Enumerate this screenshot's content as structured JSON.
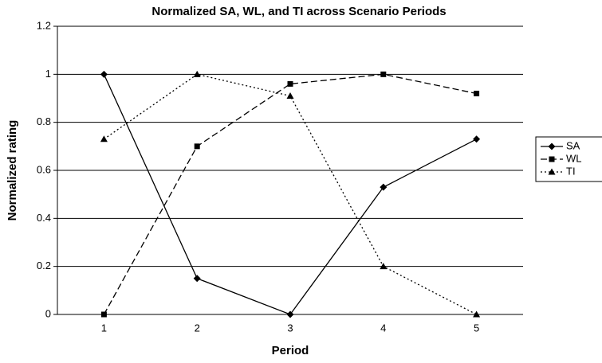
{
  "chart_data": {
    "type": "line",
    "title": "Normalized SA, WL, and TI across Scenario Periods",
    "x_label": "Period",
    "y_label": "Normalized rating",
    "categories": [
      "1",
      "2",
      "3",
      "4",
      "5"
    ],
    "series": [
      {
        "name": "SA",
        "color": "#000000",
        "line_style": "solid",
        "marker": "diamond",
        "values": [
          1,
          0.15,
          0,
          0.53,
          0.73
        ]
      },
      {
        "name": "WL",
        "color": "#000000",
        "line_style": "dashed",
        "marker": "square",
        "values": [
          0,
          0.7,
          0.96,
          1,
          0.92
        ]
      },
      {
        "name": "TI",
        "color": "#000000",
        "line_style": "dotted",
        "marker": "triangle",
        "values": [
          0.73,
          1,
          0.91,
          0.2,
          0
        ]
      }
    ],
    "ylim": [
      0,
      1.2
    ],
    "yticks": [
      0,
      0.2,
      0.4,
      0.6,
      0.8,
      1,
      1.2
    ],
    "grid": true,
    "legend": "right"
  }
}
